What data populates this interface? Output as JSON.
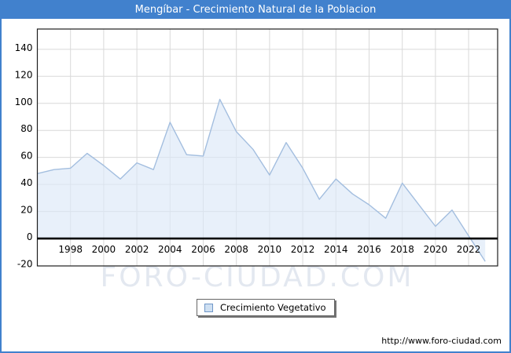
{
  "window": {
    "title": "Mengíbar - Crecimiento Natural de la Poblacion"
  },
  "colors": {
    "accent": "#4181cd",
    "line": "#a3bedf",
    "fill": "rgba(219,232,248,0.65)",
    "grid": "#d9d9d9",
    "axis": "#000000",
    "plot_border": "#1f1f1f",
    "watermark": "#cdd6e4"
  },
  "legend": {
    "label": "Crecimiento Vegetativo"
  },
  "watermark": "FORO-CIUDAD.COM",
  "footer": {
    "url": "http://www.foro-ciudad.com"
  },
  "chart_data": {
    "type": "area",
    "title": "Mengíbar - Crecimiento Natural de la Poblacion",
    "xlabel": "",
    "ylabel": "",
    "grid": true,
    "legend_position": "bottom-center",
    "xlim": [
      1996,
      2023.75
    ],
    "ylim": [
      -20.3,
      155
    ],
    "x_ticks": [
      1998,
      2000,
      2002,
      2004,
      2006,
      2008,
      2010,
      2012,
      2014,
      2016,
      2018,
      2020,
      2022
    ],
    "y_ticks": [
      -20,
      0,
      20,
      40,
      60,
      80,
      100,
      120,
      140
    ],
    "series": [
      {
        "name": "Crecimiento Vegetativo",
        "x": [
          1996,
          1997,
          1998,
          1999,
          2000,
          2001,
          2002,
          2003,
          2004,
          2005,
          2006,
          2007,
          2008,
          2009,
          2010,
          2011,
          2012,
          2013,
          2014,
          2015,
          2016,
          2017,
          2018,
          2019,
          2020,
          2021,
          2022,
          2023
        ],
        "values": [
          48,
          51,
          52,
          63,
          54,
          44,
          56,
          51,
          86,
          62,
          61,
          103,
          79,
          66,
          47,
          71,
          52,
          29,
          44,
          33,
          25,
          15,
          41,
          25,
          9,
          21,
          2,
          -17
        ]
      }
    ]
  }
}
